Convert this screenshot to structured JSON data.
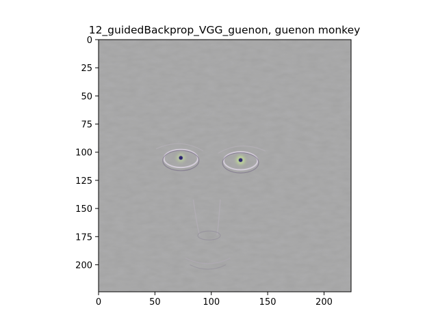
{
  "chart_data": {
    "type": "heatmap",
    "title": "12_guidedBackprop_VGG_guenon, guenon monkey",
    "xlabel": "",
    "ylabel": "",
    "xlim": [
      0,
      224
    ],
    "ylim": [
      224,
      0
    ],
    "xticks": [
      0,
      50,
      100,
      150,
      200
    ],
    "yticks": [
      0,
      25,
      50,
      75,
      100,
      125,
      150,
      175,
      200
    ],
    "image_description": "guided backpropagation saliency map of a monkey face on a grey background",
    "features": [
      {
        "name": "left-eye",
        "x": 73,
        "y": 105
      },
      {
        "name": "right-eye",
        "x": 126,
        "y": 107
      },
      {
        "name": "nose",
        "x": 98,
        "y": 170
      },
      {
        "name": "mouth",
        "x": 97,
        "y": 198
      }
    ],
    "colors": {
      "background": "#a3a3a3"
    }
  }
}
